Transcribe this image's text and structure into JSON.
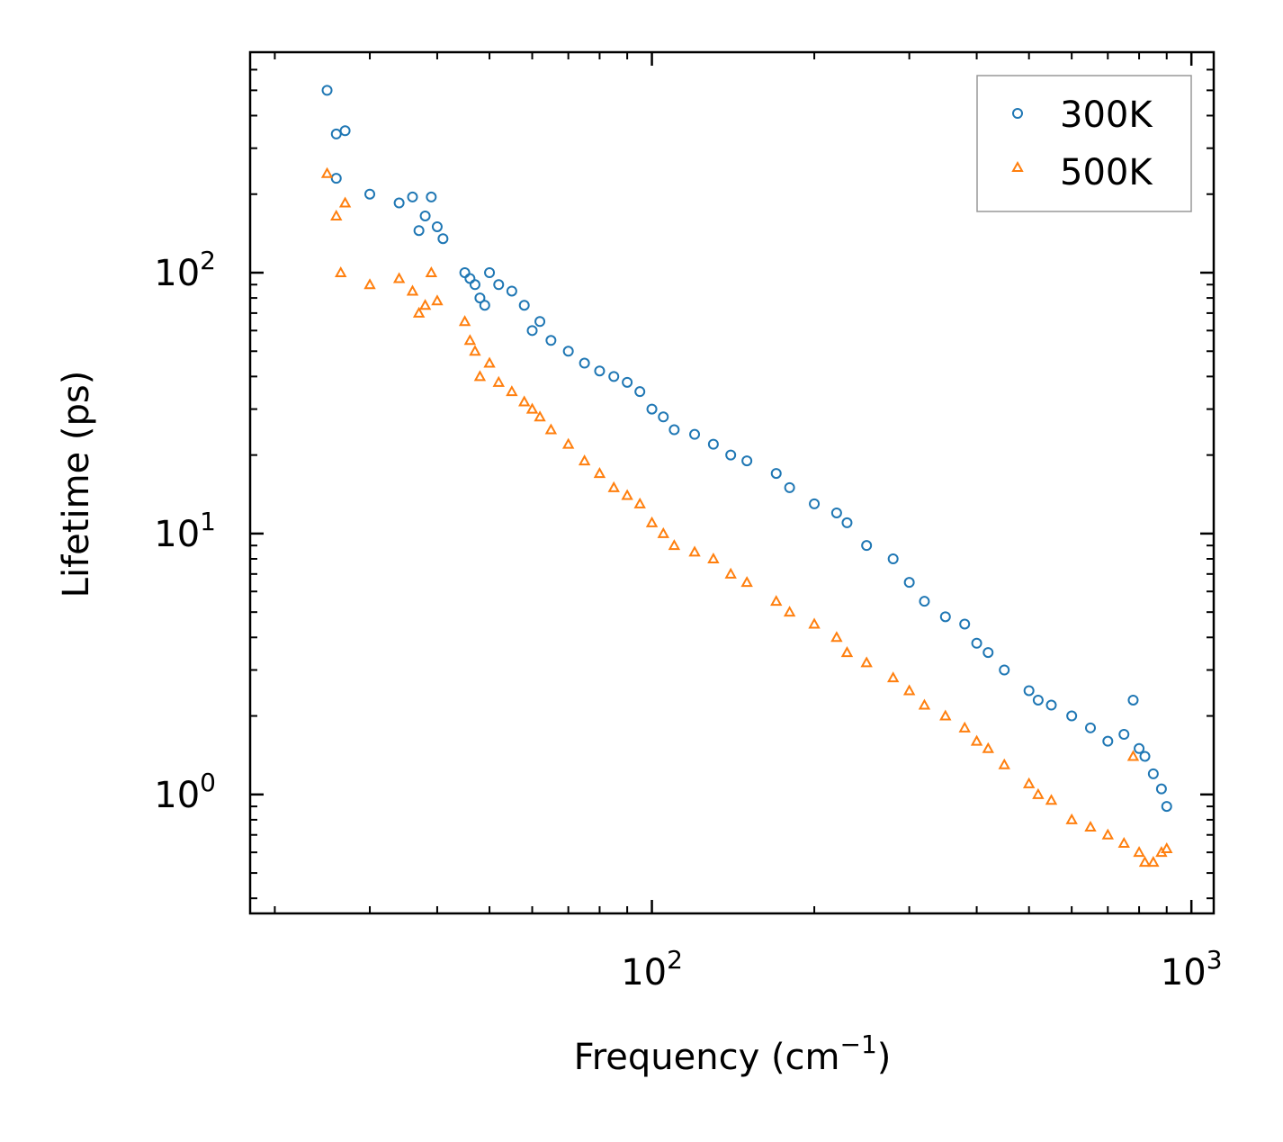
{
  "chart_data": {
    "type": "scatter",
    "title": "",
    "xlabel": "Frequency (cm",
    "xlabel_sup": "−1",
    "xlabel_end": ")",
    "ylabel": "Lifetime (ps)",
    "xscale": "log",
    "yscale": "log",
    "xlim": [
      18,
      1100
    ],
    "ylim": [
      0.35,
      700
    ],
    "x_ticks": [
      {
        "value": 100,
        "base": "10",
        "exp": "2"
      },
      {
        "value": 1000,
        "base": "10",
        "exp": "3"
      }
    ],
    "y_ticks": [
      {
        "value": 1,
        "base": "10",
        "exp": "0"
      },
      {
        "value": 10,
        "base": "10",
        "exp": "1"
      },
      {
        "value": 100,
        "base": "10",
        "exp": "2"
      }
    ],
    "legend_position": "top-right",
    "series": [
      {
        "name": "300K",
        "marker": "circle",
        "color": "#1f77b4",
        "x": [
          25,
          26,
          27,
          26,
          30,
          34,
          36,
          38,
          37,
          39,
          40,
          41,
          45,
          46,
          47,
          48,
          49,
          50,
          52,
          55,
          58,
          60,
          62,
          65,
          70,
          75,
          80,
          85,
          90,
          95,
          100,
          105,
          110,
          120,
          130,
          140,
          150,
          170,
          180,
          200,
          220,
          230,
          250,
          280,
          300,
          320,
          350,
          380,
          400,
          420,
          450,
          500,
          520,
          550,
          600,
          650,
          700,
          750,
          780,
          800,
          820,
          850,
          880,
          900
        ],
        "y": [
          500,
          340,
          350,
          230,
          200,
          185,
          195,
          165,
          145,
          195,
          150,
          135,
          100,
          95,
          90,
          80,
          75,
          100,
          90,
          85,
          75,
          60,
          65,
          55,
          50,
          45,
          42,
          40,
          38,
          35,
          30,
          28,
          25,
          24,
          22,
          20,
          19,
          17,
          15,
          13,
          12,
          11,
          9,
          8,
          6.5,
          5.5,
          4.8,
          4.5,
          3.8,
          3.5,
          3.0,
          2.5,
          2.3,
          2.2,
          2.0,
          1.8,
          1.6,
          1.7,
          2.3,
          1.5,
          1.4,
          1.2,
          1.05,
          0.9
        ]
      },
      {
        "name": "500K",
        "marker": "triangle",
        "color": "#ff7f0e",
        "x": [
          25,
          26,
          26.5,
          27,
          30,
          34,
          36,
          38,
          37,
          39,
          40,
          45,
          46,
          47,
          48,
          50,
          52,
          55,
          58,
          60,
          62,
          65,
          70,
          75,
          80,
          85,
          90,
          95,
          100,
          105,
          110,
          120,
          130,
          140,
          150,
          170,
          180,
          200,
          220,
          230,
          250,
          280,
          300,
          320,
          350,
          380,
          400,
          420,
          450,
          500,
          520,
          550,
          600,
          650,
          700,
          750,
          780,
          800,
          820,
          850,
          880,
          900
        ],
        "y": [
          240,
          165,
          100,
          185,
          90,
          95,
          85,
          75,
          70,
          100,
          78,
          65,
          55,
          50,
          40,
          45,
          38,
          35,
          32,
          30,
          28,
          25,
          22,
          19,
          17,
          15,
          14,
          13,
          11,
          10,
          9,
          8.5,
          8,
          7,
          6.5,
          5.5,
          5,
          4.5,
          4,
          3.5,
          3.2,
          2.8,
          2.5,
          2.2,
          2.0,
          1.8,
          1.6,
          1.5,
          1.3,
          1.1,
          1.0,
          0.95,
          0.8,
          0.75,
          0.7,
          0.65,
          1.4,
          0.6,
          0.55,
          0.55,
          0.6,
          0.62
        ]
      }
    ]
  }
}
